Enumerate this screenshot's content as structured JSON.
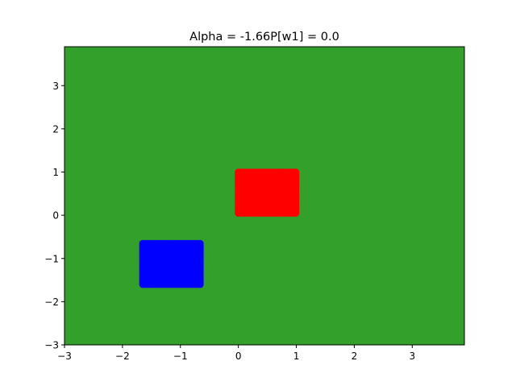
{
  "chart_data": {
    "type": "scatter",
    "title": "Alpha = -1.66P[w1] = 0.0",
    "xlabel": "",
    "ylabel": "",
    "xlim": [
      -3,
      3.9
    ],
    "ylim": [
      -3,
      3.9
    ],
    "xticks": [
      -3,
      -2,
      -1,
      0,
      1,
      2,
      3
    ],
    "yticks": [
      -3,
      -2,
      -1,
      0,
      1,
      2,
      3
    ],
    "xtick_labels": [
      "−3",
      "−2",
      "−1",
      "0",
      "1",
      "2",
      "3"
    ],
    "ytick_labels": [
      "−3",
      "−2",
      "−1",
      "0",
      "1",
      "2",
      "3"
    ],
    "background_region_color": "#33a02c",
    "grid": false,
    "series": [
      {
        "color": "#ff0000",
        "x_range": [
          0,
          1
        ],
        "y_range": [
          0.05,
          1.0
        ],
        "distribution": "uniform-dense"
      },
      {
        "color": "#0000ff",
        "x_range": [
          -1.65,
          -0.65
        ],
        "y_range": [
          -1.6,
          -0.65
        ],
        "distribution": "uniform-dense"
      }
    ]
  }
}
